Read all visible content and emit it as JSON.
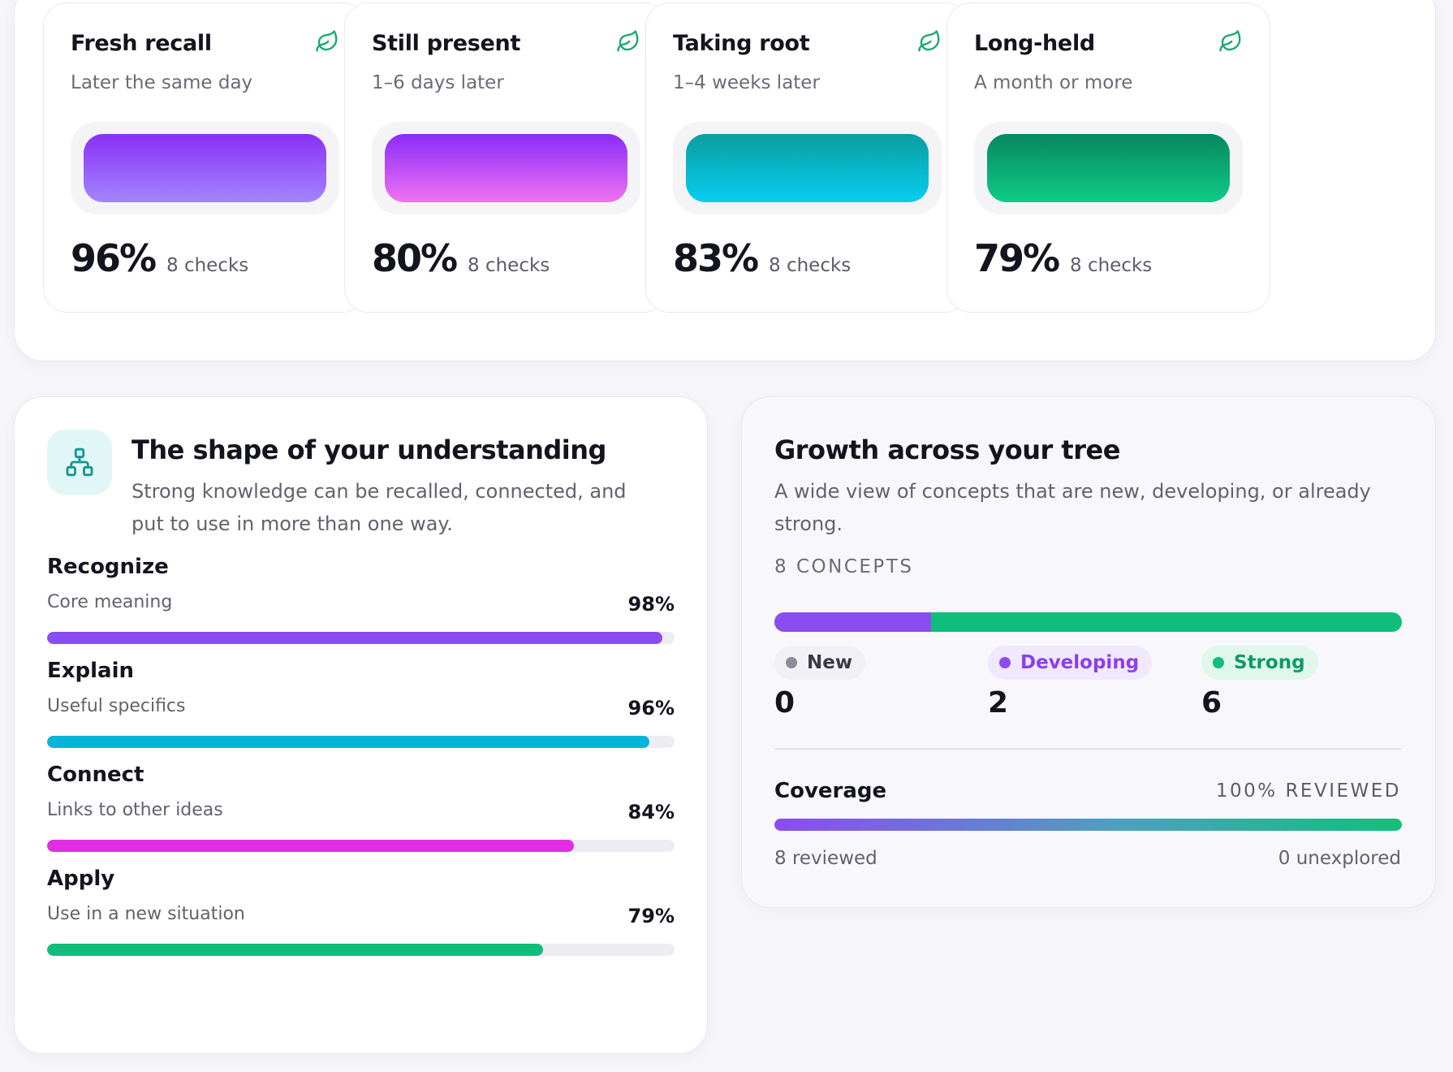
{
  "stages": [
    {
      "title": "Fresh recall",
      "subtitle": "Later the same day",
      "percent": "96%",
      "checks": "8 checks",
      "gradient": [
        "#8a30f6",
        "#a386ff"
      ],
      "icon": "leaf-icon"
    },
    {
      "title": "Still present",
      "subtitle": "1–6 days later",
      "percent": "80%",
      "checks": "8 checks",
      "gradient": [
        "#8a2bf8",
        "#f072f2"
      ],
      "icon": "leaf-icon"
    },
    {
      "title": "Taking root",
      "subtitle": "1–4 weeks later",
      "percent": "83%",
      "checks": "8 checks",
      "gradient": [
        "#0b9ea0",
        "#06cdf0"
      ],
      "icon": "leaf-icon"
    },
    {
      "title": "Long-held",
      "subtitle": "A month or more",
      "percent": "79%",
      "checks": "8 checks",
      "gradient": [
        "#07875f",
        "#0fcc88"
      ],
      "icon": "leaf-icon"
    }
  ],
  "understanding": {
    "icon": "hierarchy-icon",
    "title": "The shape of your understanding",
    "description": "Strong knowledge can be recalled, connected, and put to use in more than one way.",
    "skills": [
      {
        "name": "Recognize",
        "sub": "Core meaning",
        "percent": "98%",
        "value": 0.98,
        "color": "#8b4cf0"
      },
      {
        "name": "Explain",
        "sub": "Useful specifics",
        "percent": "96%",
        "value": 0.96,
        "color": "#06b4d8"
      },
      {
        "name": "Connect",
        "sub": "Links to other ideas",
        "percent": "84%",
        "value": 0.84,
        "color": "#e02ee4"
      },
      {
        "name": "Apply",
        "sub": "Use in a new situation",
        "percent": "79%",
        "value": 0.79,
        "color": "#10be7b"
      }
    ]
  },
  "growth": {
    "title": "Growth across your tree",
    "description": "A wide view of concepts that are new, developing, or already strong.",
    "concept_count": "8 CONCEPTS",
    "legend": [
      {
        "label": "New",
        "count": "0",
        "value": 0,
        "dot": "#8c8c98",
        "text": "#3a3a46",
        "bg": "#f1f1f5",
        "bar": "#b8b8c4"
      },
      {
        "label": "Developing",
        "count": "2",
        "value": 2,
        "dot": "#8b4cf0",
        "text": "#8b3fe8",
        "bg": "#f0e8fd",
        "bar": "#8b4cf0"
      },
      {
        "label": "Strong",
        "count": "6",
        "value": 6,
        "dot": "#10be7b",
        "text": "#0c9c63",
        "bg": "#e0f7ec",
        "bar": "#10be7b"
      }
    ],
    "coverage": {
      "label": "Coverage",
      "stat": "100% REVIEWED",
      "value": 1.0,
      "reviewed": "8 reviewed",
      "unexplored": "0 unexplored"
    }
  }
}
